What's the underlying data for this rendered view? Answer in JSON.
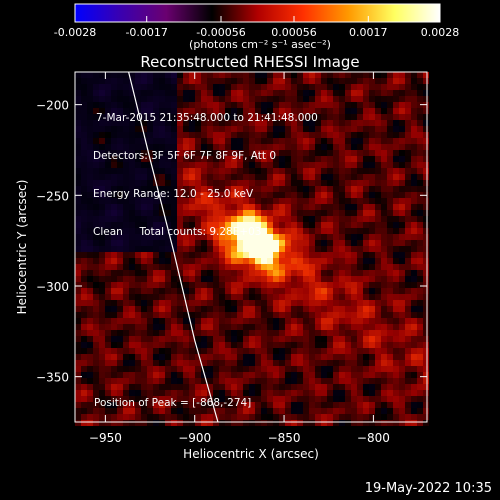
{
  "colorbar": {
    "ticks": [
      {
        "value": -0.0028,
        "label": "-0.0028"
      },
      {
        "value": -0.0017,
        "label": "-0.0017"
      },
      {
        "value": -0.00056,
        "label": "-0.00056"
      },
      {
        "value": 0.00056,
        "label": "0.00056"
      },
      {
        "value": 0.0017,
        "label": "0.0017"
      },
      {
        "value": 0.0028,
        "label": "0.0028"
      }
    ],
    "range": [
      -0.0028,
      0.0028
    ],
    "unit_label": "(photons cm⁻² s⁻¹ asec⁻²)",
    "colors": [
      "#0000ff",
      "#3a00b0",
      "#6a0070",
      "#000000",
      "#b00000",
      "#ff3000",
      "#ff9a00",
      "#ffff60",
      "#ffffff"
    ]
  },
  "plot": {
    "title": "Reconstructed RHESSI Image",
    "info_lines": [
      "7-Mar-2015 21:35:48.000 to 21:41:48.000",
      "Detectors: 3F 5F 6F 7F 8F 9F, Att 0",
      "Energy Range: 12.0 - 25.0 keV",
      "Clean     Total counts: 9.28E+03"
    ],
    "peak_label": "Position of Peak = [-868,-274]"
  },
  "footer": {
    "date": "19-May-2022 10:35"
  },
  "chart_data": {
    "type": "heatmap",
    "title": "Reconstructed RHESSI Image",
    "xlabel": "Heliocentric X (arcsec)",
    "ylabel": "Heliocentric Y (arcsec)",
    "xlim": [
      -967,
      -770
    ],
    "ylim": [
      -375,
      -182
    ],
    "xticks": [
      -950,
      -900,
      -850,
      -800
    ],
    "yticks": [
      -200,
      -250,
      -300,
      -350
    ],
    "peak": {
      "x": -868,
      "y": -274,
      "value": 0.0028
    },
    "limb_curve": [
      [
        -937,
        -182
      ],
      [
        -925,
        -230
      ],
      [
        -912,
        -280
      ],
      [
        -900,
        -330
      ],
      [
        -887,
        -375
      ]
    ],
    "colorbar_range": [
      -0.0028,
      0.0028
    ]
  }
}
